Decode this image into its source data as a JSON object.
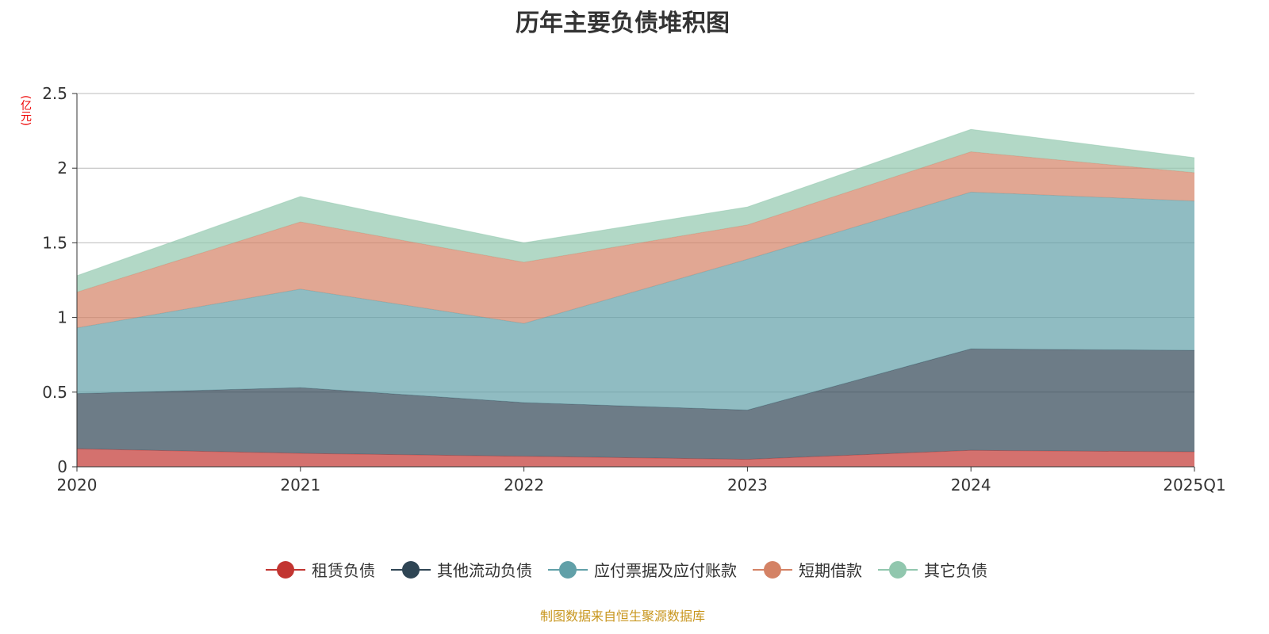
{
  "chart_data": {
    "type": "area",
    "stacked": true,
    "title": "历年主要负债堆积图",
    "ylabel": "(亿元)",
    "xlabel": "",
    "ylim": [
      0,
      2.5
    ],
    "yticks": [
      "0",
      "0.5",
      "1",
      "1.5",
      "2",
      "2.5"
    ],
    "categories": [
      "2020",
      "2021",
      "2022",
      "2023",
      "2024",
      "2025Q1"
    ],
    "grid": true,
    "legend_position": "bottom",
    "series": [
      {
        "name": "租赁负债",
        "color": "#c23531",
        "values": [
          0.12,
          0.09,
          0.07,
          0.05,
          0.11,
          0.1
        ]
      },
      {
        "name": "其他流动负债",
        "color": "#2f4554",
        "values": [
          0.37,
          0.44,
          0.36,
          0.33,
          0.68,
          0.68
        ]
      },
      {
        "name": "应付票据及应付账款",
        "color": "#61a0a8",
        "values": [
          0.44,
          0.66,
          0.53,
          1.01,
          1.05,
          1.0
        ]
      },
      {
        "name": "短期借款",
        "color": "#d48265",
        "values": [
          0.24,
          0.45,
          0.41,
          0.23,
          0.27,
          0.19
        ]
      },
      {
        "name": "其它负债",
        "color": "#91c7ae",
        "values": [
          0.11,
          0.17,
          0.13,
          0.12,
          0.15,
          0.1
        ]
      }
    ]
  },
  "footer": {
    "source": "制图数据来自恒生聚源数据库"
  }
}
